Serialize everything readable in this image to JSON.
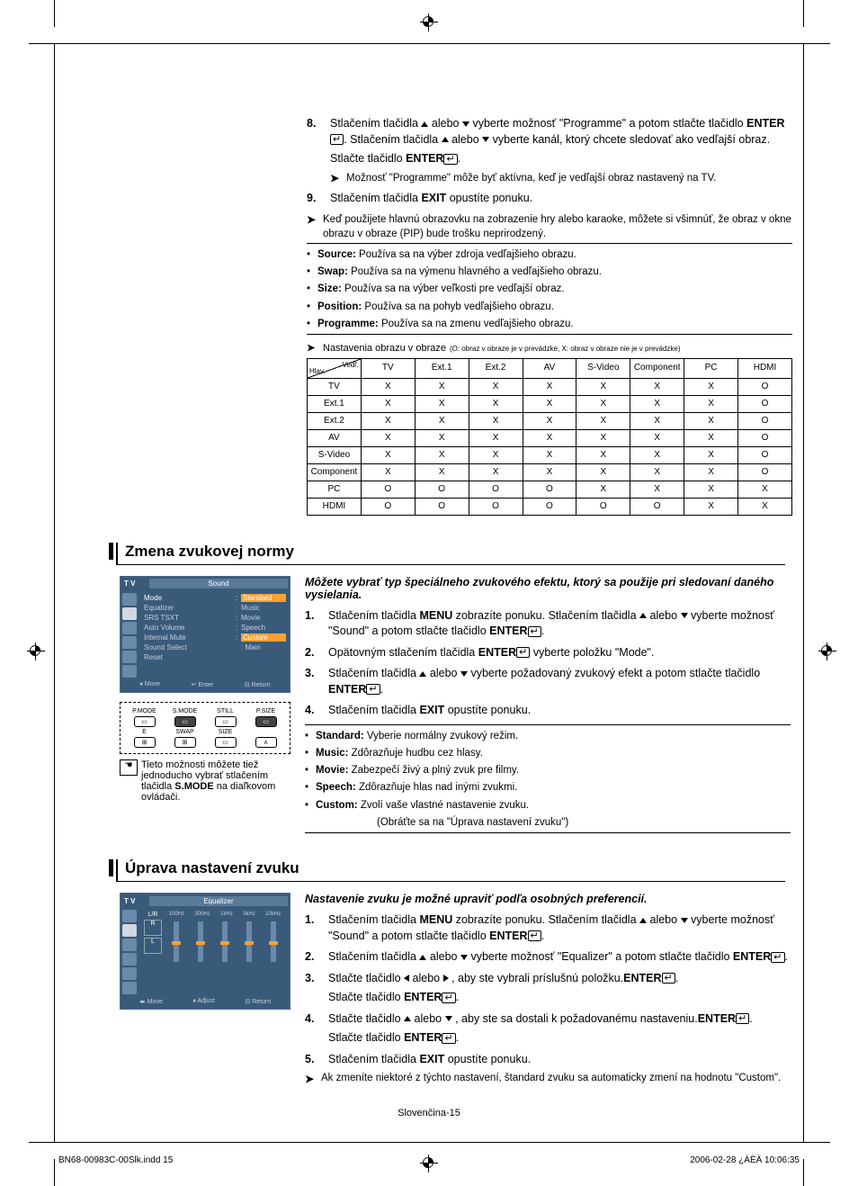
{
  "crop_marks": true,
  "section1": {
    "step8": {
      "num": "8.",
      "line1_pre": "Stlačením tlačidla ",
      "line1_mid": " alebo ",
      "line1_post": " vyberte možnosť \"Programme\" a potom stlačte tlačidlo ",
      "enter1": "ENTER",
      "line2_pre": ". Stlačením tlačidla ",
      "line2_mid": " alebo ",
      "line2_post": " vyberte kanál, ktorý chcete sledovať ako vedľajší obraz.",
      "line3": "Stlačte tlačidlo ",
      "enter2": "ENTER",
      "note": "Možnosť \"Programme\" môže byť aktívna, keď je vedľajší obraz nastavený na TV."
    },
    "step9": {
      "num": "9.",
      "text_pre": "Stlačením tlačidla ",
      "exit": "EXIT",
      "text_post": " opustíte ponuku."
    },
    "mainnote": "Keď použijete hlavnú obrazovku na zobrazenie hry alebo karaoke, môžete si všimnúť, že obraz v okne obrazu v obraze (PIP) bude trošku neprirodzený.",
    "defs": [
      {
        "term": "Source:",
        "desc": "Používa sa na výber zdroja vedľajšieho obrazu."
      },
      {
        "term": "Swap:",
        "desc": "Používa sa na výmenu hlavného a vedľajšieho obrazu."
      },
      {
        "term": "Size:",
        "desc": "Používa sa na výber veľkosti pre vedľajší obraz."
      },
      {
        "term": "Position:",
        "desc": "Používa sa na pohyb vedľajšieho obrazu."
      },
      {
        "term": "Programme:",
        "desc": "Používa sa na zmenu vedľajšieho obrazu."
      }
    ],
    "matrix": {
      "caption": "Nastavenia obrazu v obraze",
      "legend": "(O: obraz v obraze je v prevádzke, X: obraz v obraze nie je v prevádzke)",
      "corner_main": "Hlav.",
      "corner_sub": "Vedľ.",
      "cols": [
        "TV",
        "Ext.1",
        "Ext.2",
        "AV",
        "S-Video",
        "Component",
        "PC",
        "HDMI"
      ],
      "rows": [
        {
          "h": "TV",
          "c": [
            "X",
            "X",
            "X",
            "X",
            "X",
            "X",
            "X",
            "O"
          ]
        },
        {
          "h": "Ext.1",
          "c": [
            "X",
            "X",
            "X",
            "X",
            "X",
            "X",
            "X",
            "O"
          ]
        },
        {
          "h": "Ext.2",
          "c": [
            "X",
            "X",
            "X",
            "X",
            "X",
            "X",
            "X",
            "O"
          ]
        },
        {
          "h": "AV",
          "c": [
            "X",
            "X",
            "X",
            "X",
            "X",
            "X",
            "X",
            "O"
          ]
        },
        {
          "h": "S-Video",
          "c": [
            "X",
            "X",
            "X",
            "X",
            "X",
            "X",
            "X",
            "O"
          ]
        },
        {
          "h": "Component",
          "c": [
            "X",
            "X",
            "X",
            "X",
            "X",
            "X",
            "X",
            "O"
          ]
        },
        {
          "h": "PC",
          "c": [
            "O",
            "O",
            "O",
            "O",
            "X",
            "X",
            "X",
            "X"
          ]
        },
        {
          "h": "HDMI",
          "c": [
            "O",
            "O",
            "O",
            "O",
            "O",
            "O",
            "X",
            "X"
          ]
        }
      ]
    }
  },
  "section2": {
    "heading": "Zmena zvukovej normy",
    "intro": "Môžete vybrať typ špeciálneho zvukového efektu, ktorý sa použije pri sledovaní daného vysielania.",
    "steps": [
      {
        "num": "1.",
        "pre": "Stlačením tlačidla ",
        "kw1": "MENU",
        "mid1": " zobrazíte ponuku. Stlačením tlačidla ",
        "arrows": true,
        "mid2": " alebo ",
        "post": " vyberte možnosť \"Sound\" a potom stlačte tlačidlo ",
        "kw2": "ENTER",
        "tail": "."
      },
      {
        "num": "2.",
        "pre": "Opätovným stlačením tlačidla ",
        "kw1": "ENTER",
        "post": " vyberte položku \"Mode\"."
      },
      {
        "num": "3.",
        "pre": "Stlačením tlačidla ",
        "arrows": true,
        "mid2": " alebo ",
        "post": " vyberte požadovaný zvukový efekt a potom stlačte tlačidlo ",
        "kw2": "ENTER",
        "tail": "."
      },
      {
        "num": "4.",
        "pre": "Stlačením tlačidla ",
        "kw1": "EXIT",
        "post": " opustíte ponuku."
      }
    ],
    "defs": [
      {
        "term": "Standard:",
        "desc": "Vyberie normálny zvukový režim."
      },
      {
        "term": "Music:",
        "desc": "Zdôrazňuje hudbu cez hlasy."
      },
      {
        "term": "Movie:",
        "desc": "Zabezpečí živý a plný zvuk pre filmy."
      },
      {
        "term": "Speech:",
        "desc": "Zdôrazňuje hlas nad inými zvukmi."
      },
      {
        "term": "Custom:",
        "desc": "Zvolí vaše vlastné nastavenie zvuku."
      }
    ],
    "defs_tail": "(Obráťte sa na \"Úprava nastavení zvuku\")",
    "osd": {
      "logo": "T V",
      "title": "Sound",
      "items": [
        {
          "l": "Mode",
          "v": "Standard",
          "hl": true
        },
        {
          "l": "Equalizer",
          "v": "Music"
        },
        {
          "l": "SRS TSXT",
          "v": "Movie"
        },
        {
          "l": "Auto Volume",
          "v": "Speech"
        },
        {
          "l": "Internal Mute",
          "v": "Custom",
          "cust": true
        },
        {
          "l": "Sound Select",
          "v": ": Main"
        },
        {
          "l": "Reset",
          "v": ""
        }
      ],
      "foot": [
        "Move",
        "Enter",
        "Return"
      ]
    },
    "remote": {
      "top": [
        "P.MODE",
        "S.MODE",
        "STILL",
        "P.SIZE"
      ],
      "bot": [
        "E",
        "SWAP",
        "SIZE",
        ""
      ]
    },
    "handnote": "Tieto možnosti môžete tiež jednoducho vybrať stlačením tlačidla ",
    "handnote_kw": "S.MODE",
    "handnote_tail": " na diaľkovom ovládači."
  },
  "section3": {
    "heading": "Úprava nastavení zvuku",
    "intro": "Nastavenie zvuku je možné upraviť podľa osobných preferencií.",
    "steps": [
      {
        "num": "1.",
        "pre": "Stlačením tlačidla ",
        "kw1": "MENU",
        "mid1": " zobrazíte ponuku. Stlačením tlačidla ",
        "arrows": "ud",
        "mid2": " alebo ",
        "post": " vyberte možnosť \"Sound\" a potom stlačte tlačidlo ",
        "kw2": "ENTER",
        "tail": "."
      },
      {
        "num": "2.",
        "pre": "Stlačením tlačidla ",
        "arrows": "ud",
        "mid2": " alebo ",
        "post": " vyberte možnosť \"Equalizer\" a potom stlačte tlačidlo ",
        "kw2": "ENTER",
        "tail": "."
      },
      {
        "num": "3.",
        "pre": "Stlačte tlačidlo ",
        "arrows": "lr",
        "mid2": " alebo ",
        "post": " , aby ste vybrali príslušnú položku.",
        "line2": "Stlačte tlačidlo ",
        "kw2": "ENTER",
        "tail": "."
      },
      {
        "num": "4.",
        "pre": "Stlačte tlačidlo ",
        "arrows": "ud",
        "mid2": " alebo ",
        "post": " , aby ste sa dostali k požadovanému nastaveniu.",
        "line2": "Stlačte tlačidlo ",
        "kw2": "ENTER",
        "tail": "."
      },
      {
        "num": "5.",
        "pre": "Stlačením tlačidla ",
        "kw1": "EXIT",
        "post": " opustíte ponuku."
      }
    ],
    "note": "Ak zmeníte niektoré z týchto nastavení, štandard zvuku sa automaticky zmení na hodnotu \"Custom\".",
    "osd": {
      "logo": "T V",
      "title": "Equalizer",
      "chan": "L/R",
      "freqs": [
        "100Hz",
        "300Hz",
        "1kHz",
        "3kHz",
        "10kHz"
      ],
      "foot": [
        "Move",
        "Adjust",
        "Return"
      ]
    }
  },
  "page_num": "Slovenčina-15",
  "footer": {
    "left": "BN68-00983C-00Slk.indd   15",
    "right": "2006-02-28   ¿ÀÈÄ 10:06:35"
  },
  "colors": {
    "osd_bg": "#3a5a7a",
    "osd_hl": "#ffa030",
    "text": "#000000",
    "bg": "#ffffff"
  }
}
